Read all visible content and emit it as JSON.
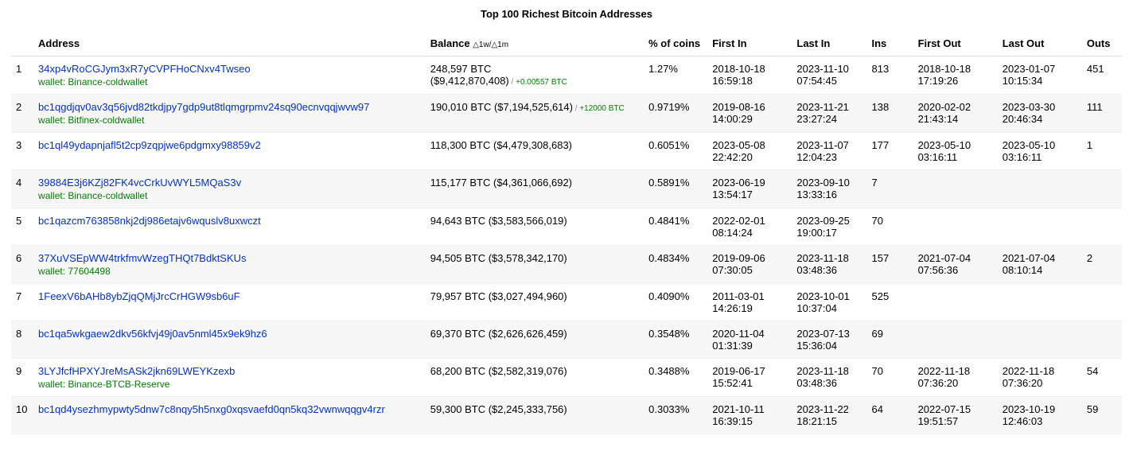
{
  "title": "Top 100 Richest Bitcoin Addresses",
  "columns": {
    "rank": "",
    "address": "Address",
    "balance": "Balance",
    "balance_sub": "△1w/△1m",
    "percent": "% of coins",
    "first_in": "First In",
    "last_in": "Last In",
    "ins": "Ins",
    "first_out": "First Out",
    "last_out": "Last Out",
    "outs": "Outs"
  },
  "link_color": "#0033cc",
  "wallet_color": "#008000",
  "delta_color": "#008000",
  "row_alt_bg": "#f7f7f7",
  "rows": [
    {
      "rank": "1",
      "address": "34xp4vRoCGJym3xR7yCVPFHoCNxv4Twseo",
      "wallet": "wallet: Binance-coldwallet",
      "balance_line1": "248,597 BTC",
      "balance_line2_prefix": "($9,412,870,408)",
      "delta": "+0.00557 BTC",
      "percent": "1.27%",
      "first_in_d": "2018-10-18",
      "first_in_t": "16:59:18",
      "last_in_d": "2023-11-10",
      "last_in_t": "07:54:45",
      "ins": "813",
      "first_out_d": "2018-10-18",
      "first_out_t": "17:19:26",
      "last_out_d": "2023-01-07",
      "last_out_t": "10:15:34",
      "outs": "451"
    },
    {
      "rank": "2",
      "address": "bc1qgdjqv0av3q56jvd82tkdjpy7gdp9ut8tlqmgrpmv24sq90ecnvqqjwvw97",
      "wallet": "wallet: Bitfinex-coldwallet",
      "balance_line1": "190,010 BTC ($7,194,525,614)",
      "balance_line2_prefix": "",
      "delta": "+12000 BTC",
      "same_line_delta": true,
      "percent": "0.9719%",
      "first_in_d": "2019-08-16",
      "first_in_t": "14:00:29",
      "last_in_d": "2023-11-21",
      "last_in_t": "23:27:24",
      "ins": "138",
      "first_out_d": "2020-02-02",
      "first_out_t": "21:43:14",
      "last_out_d": "2023-03-30",
      "last_out_t": "20:46:34",
      "outs": "111"
    },
    {
      "rank": "3",
      "address": "bc1ql49ydapnjafl5t2cp9zqpjwe6pdgmxy98859v2",
      "wallet": "",
      "balance_line1": "118,300 BTC ($4,479,308,683)",
      "balance_line2_prefix": "",
      "delta": "",
      "percent": "0.6051%",
      "first_in_d": "2023-05-08",
      "first_in_t": "22:42:20",
      "last_in_d": "2023-11-07",
      "last_in_t": "12:04:23",
      "ins": "177",
      "first_out_d": "2023-05-10",
      "first_out_t": "03:16:11",
      "last_out_d": "2023-05-10",
      "last_out_t": "03:16:11",
      "outs": "1"
    },
    {
      "rank": "4",
      "address": "39884E3j6KZj82FK4vcCrkUvWYL5MQaS3v",
      "wallet": "wallet: Binance-coldwallet",
      "balance_line1": "115,177 BTC ($4,361,066,692)",
      "balance_line2_prefix": "",
      "delta": "",
      "percent": "0.5891%",
      "first_in_d": "2023-06-19",
      "first_in_t": "13:54:17",
      "last_in_d": "2023-09-10",
      "last_in_t": "13:33:16",
      "ins": "7",
      "first_out_d": "",
      "first_out_t": "",
      "last_out_d": "",
      "last_out_t": "",
      "outs": ""
    },
    {
      "rank": "5",
      "address": "bc1qazcm763858nkj2dj986etajv6wquslv8uxwczt",
      "wallet": "",
      "balance_line1": "94,643 BTC ($3,583,566,019)",
      "balance_line2_prefix": "",
      "delta": "",
      "percent": "0.4841%",
      "first_in_d": "2022-02-01",
      "first_in_t": "08:14:24",
      "last_in_d": "2023-09-25",
      "last_in_t": "19:00:17",
      "ins": "70",
      "first_out_d": "",
      "first_out_t": "",
      "last_out_d": "",
      "last_out_t": "",
      "outs": ""
    },
    {
      "rank": "6",
      "address": "37XuVSEpWW4trkfmvWzegTHQt7BdktSKUs",
      "wallet": "wallet: 77604498",
      "balance_line1": "94,505 BTC ($3,578,342,170)",
      "balance_line2_prefix": "",
      "delta": "",
      "percent": "0.4834%",
      "first_in_d": "2019-09-06",
      "first_in_t": "07:30:05",
      "last_in_d": "2023-11-18",
      "last_in_t": "03:48:36",
      "ins": "157",
      "first_out_d": "2021-07-04",
      "first_out_t": "07:56:36",
      "last_out_d": "2021-07-04",
      "last_out_t": "08:10:14",
      "outs": "2"
    },
    {
      "rank": "7",
      "address": "1FeexV6bAHb8ybZjqQMjJrcCrHGW9sb6uF",
      "wallet": "",
      "balance_line1": "79,957 BTC ($3,027,494,960)",
      "balance_line2_prefix": "",
      "delta": "",
      "percent": "0.4090%",
      "first_in_d": "2011-03-01",
      "first_in_t": "14:26:19",
      "last_in_d": "2023-10-01",
      "last_in_t": "10:37:04",
      "ins": "525",
      "first_out_d": "",
      "first_out_t": "",
      "last_out_d": "",
      "last_out_t": "",
      "outs": ""
    },
    {
      "rank": "8",
      "address": "bc1qa5wkgaew2dkv56kfvj49j0av5nml45x9ek9hz6",
      "wallet": "",
      "balance_line1": "69,370 BTC ($2,626,626,459)",
      "balance_line2_prefix": "",
      "delta": "",
      "percent": "0.3548%",
      "first_in_d": "2020-11-04",
      "first_in_t": "01:31:39",
      "last_in_d": "2023-07-13",
      "last_in_t": "15:36:04",
      "ins": "69",
      "first_out_d": "",
      "first_out_t": "",
      "last_out_d": "",
      "last_out_t": "",
      "outs": ""
    },
    {
      "rank": "9",
      "address": "3LYJfcfHPXYJreMsASk2jkn69LWEYKzexb",
      "wallet": "wallet: Binance-BTCB-Reserve",
      "balance_line1": "68,200 BTC ($2,582,319,076)",
      "balance_line2_prefix": "",
      "delta": "",
      "percent": "0.3488%",
      "first_in_d": "2019-06-17",
      "first_in_t": "15:52:41",
      "last_in_d": "2023-11-18",
      "last_in_t": "03:48:36",
      "ins": "70",
      "first_out_d": "2022-11-18",
      "first_out_t": "07:36:20",
      "last_out_d": "2022-11-18",
      "last_out_t": "07:36:20",
      "outs": "54"
    },
    {
      "rank": "10",
      "address": "bc1qd4ysezhmypwty5dnw7c8nqy5h5nxg0xqsvaefd0qn5kq32vwnwqqgv4rzr",
      "wallet": "",
      "balance_line1": "59,300 BTC ($2,245,333,756)",
      "balance_line2_prefix": "",
      "delta": "",
      "percent": "0.3033%",
      "first_in_d": "2021-10-11",
      "first_in_t": "16:39:15",
      "last_in_d": "2023-11-22",
      "last_in_t": "18:21:15",
      "ins": "64",
      "first_out_d": "2022-07-15",
      "first_out_t": "19:51:57",
      "last_out_d": "2023-10-19",
      "last_out_t": "12:46:03",
      "outs": "59"
    }
  ]
}
